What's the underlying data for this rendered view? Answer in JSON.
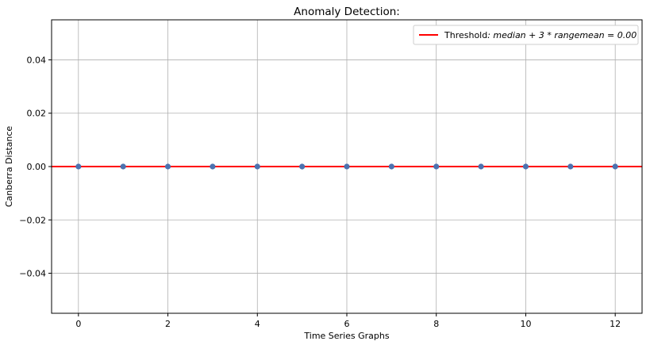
{
  "chart_data": {
    "type": "scatter",
    "title": "Anomaly Detection:",
    "xlabel": "Time Series Graphs",
    "ylabel": "Canberra Distance",
    "xlim": [
      -0.6,
      12.6
    ],
    "ylim": [
      -0.055,
      0.055
    ],
    "xticks": [
      0,
      2,
      4,
      6,
      8,
      10,
      12
    ],
    "yticks": [
      -0.04,
      -0.02,
      0.0,
      0.02,
      0.04
    ],
    "ytick_labels": [
      "−0.04",
      "−0.02",
      "0.00",
      "0.02",
      "0.04"
    ],
    "grid": true,
    "legend_position": "top-right",
    "series": [
      {
        "type": "scatter",
        "x": [
          0,
          1,
          2,
          3,
          4,
          5,
          6,
          7,
          8,
          9,
          10,
          11,
          12
        ],
        "y": [
          0,
          0,
          0,
          0,
          0,
          0,
          0,
          0,
          0,
          0,
          0,
          0,
          0
        ],
        "color": "#4c72b0"
      },
      {
        "type": "hline",
        "y": 0.0,
        "color": "#ff0000"
      }
    ],
    "legend": {
      "prefix": "Threshold",
      "math": ": median + 3 * rangemean = 0.00"
    }
  }
}
